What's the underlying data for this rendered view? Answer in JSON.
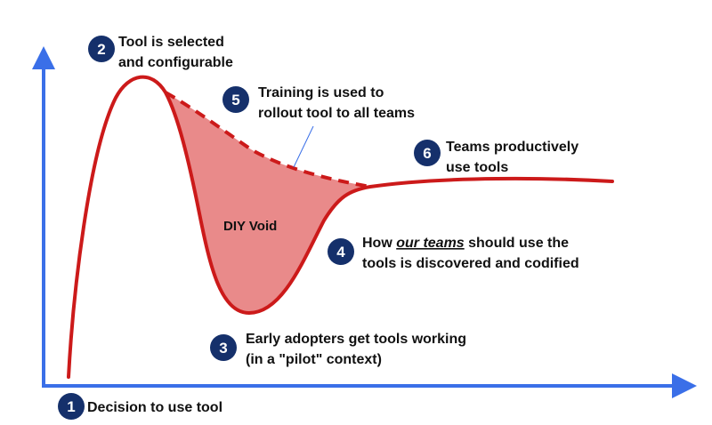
{
  "colors": {
    "axis": "#3a6fe8",
    "curve": "#cc1a1a",
    "void_fill": "#e98a8a",
    "badge": "#15306b",
    "text": "#111111"
  },
  "annotations": {
    "step1": {
      "number": "1",
      "line1": "Decision to use tool"
    },
    "step2": {
      "number": "2",
      "line1": "Tool is selected",
      "line2": "and configurable"
    },
    "step3": {
      "number": "3",
      "line1": "Early adopters get tools working",
      "line2": "(in a \"pilot\" context)"
    },
    "step4": {
      "number": "4",
      "line1_pre": "How ",
      "line1_em": "our teams",
      "line1_post": " should use the",
      "line2": "tools is discovered and codified"
    },
    "step5": {
      "number": "5",
      "line1": "Training is used to",
      "line2": "rollout tool to all teams"
    },
    "step6": {
      "number": "6",
      "line1": "Teams productively",
      "line2": "use tools"
    }
  },
  "void_label": "DIY Void"
}
